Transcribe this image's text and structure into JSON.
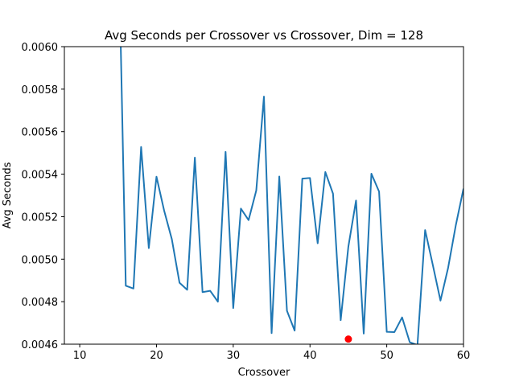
{
  "chart_data": {
    "type": "line",
    "title": "Avg Seconds per Crossover vs Crossover, Dim = 128",
    "xlabel": "Crossover",
    "ylabel": "Avg Seconds",
    "xlim": [
      8,
      60
    ],
    "ylim": [
      0.0046,
      0.006
    ],
    "x_ticks": [
      10,
      20,
      30,
      40,
      50,
      60
    ],
    "y_ticks": [
      0.0046,
      0.0048,
      0.005,
      0.0052,
      0.0054,
      0.0056,
      0.0058,
      0.006
    ],
    "x_tick_labels": [
      "10",
      "20",
      "30",
      "40",
      "50",
      "60"
    ],
    "y_tick_labels": [
      "0.0046",
      "0.0048",
      "0.0050",
      "0.0052",
      "0.0054",
      "0.0056",
      "0.0058",
      "0.0060"
    ],
    "grid": false,
    "series": [
      {
        "color": "#1f77b4",
        "x": [
          15,
          16,
          17,
          18,
          19,
          20,
          21,
          22,
          23,
          24,
          25,
          26,
          27,
          28,
          29,
          30,
          31,
          32,
          33,
          34,
          35,
          36,
          37,
          38,
          39,
          40,
          41,
          42,
          43,
          44,
          45,
          46,
          47,
          48,
          49,
          50,
          51,
          52,
          53,
          54,
          55,
          56,
          57,
          58,
          59,
          60
        ],
        "values": [
          0.0066,
          0.004875,
          0.004862,
          0.005528,
          0.005052,
          0.005388,
          0.005228,
          0.005094,
          0.004889,
          0.004856,
          0.005478,
          0.004845,
          0.004851,
          0.0048,
          0.005505,
          0.00477,
          0.005238,
          0.005184,
          0.005323,
          0.005765,
          0.004652,
          0.005389,
          0.004757,
          0.004664,
          0.005379,
          0.005382,
          0.005075,
          0.00541,
          0.005308,
          0.004713,
          0.005059,
          0.005276,
          0.00465,
          0.005402,
          0.005318,
          0.004658,
          0.004657,
          0.004726,
          0.004609,
          0.004596,
          0.005137,
          0.004973,
          0.004805,
          0.00496,
          0.00516,
          0.005332
        ]
      },
      {
        "color": "#ff0000",
        "marker": "circle",
        "x": [
          45
        ],
        "values": [
          0.004624
        ]
      }
    ]
  }
}
